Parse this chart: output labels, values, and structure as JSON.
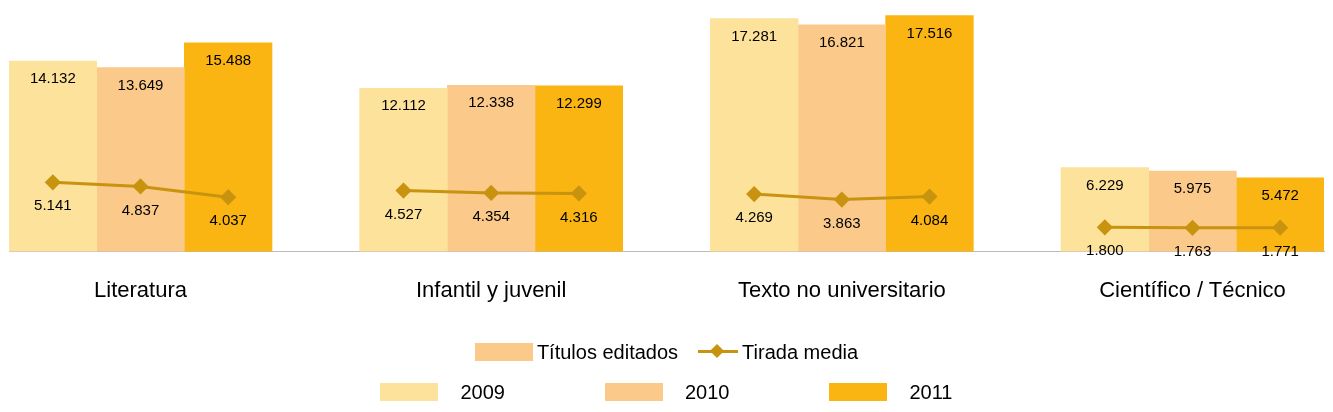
{
  "chart_data": {
    "type": "bar",
    "legend": "bottom",
    "legend_title": "Títulos editados",
    "marker": "diamond",
    "categories": [
      null,
      "Literatura",
      null,
      null,
      null,
      "Infantil y juvenil",
      null,
      null,
      null,
      "Texto no universitario",
      null,
      null,
      null,
      "Científico / Técnico",
      null
    ],
    "series": [
      {
        "name": "2009",
        "color": "#fde29c",
        "values": [
          14132,
          null,
          null,
          null,
          12112,
          null,
          null,
          null,
          17281,
          null,
          null,
          null,
          6229,
          null,
          null
        ],
        "value_labels": [
          "14.132",
          null,
          null,
          null,
          "12.112",
          null,
          null,
          null,
          "17.281",
          null,
          null,
          null,
          "6.229",
          null,
          null
        ]
      },
      {
        "name": "2010",
        "color": "#fbc98a",
        "values": [
          null,
          13649,
          null,
          null,
          null,
          12338,
          null,
          null,
          null,
          16821,
          null,
          null,
          null,
          5975,
          null
        ],
        "value_labels": [
          null,
          "13.649",
          null,
          null,
          null,
          "12.338",
          null,
          null,
          null,
          "16.821",
          null,
          null,
          null,
          "5.975",
          null
        ]
      },
      {
        "name": "2011",
        "color": "#fbb512",
        "values": [
          null,
          null,
          15488,
          null,
          null,
          null,
          12299,
          null,
          null,
          null,
          17516,
          null,
          null,
          null,
          5472
        ],
        "value_labels": [
          null,
          null,
          "15.488",
          null,
          null,
          null,
          "12.299",
          null,
          null,
          null,
          "17.516",
          null,
          null,
          null,
          "5.472"
        ]
      },
      {
        "name": "Tirada media",
        "type": "line",
        "color": "#c8930f",
        "values": [
          5141,
          4837,
          4037,
          null,
          4527,
          4354,
          4316,
          null,
          4269,
          3863,
          4084,
          null,
          1800,
          1763,
          1771
        ],
        "value_labels": [
          "5.141",
          "4.837",
          "4.037",
          null,
          "4.527",
          "4.354",
          "4.316",
          null,
          "4.269",
          "3.863",
          "4.084",
          null,
          "1.800",
          "1.763",
          "1.771"
        ]
      }
    ]
  }
}
